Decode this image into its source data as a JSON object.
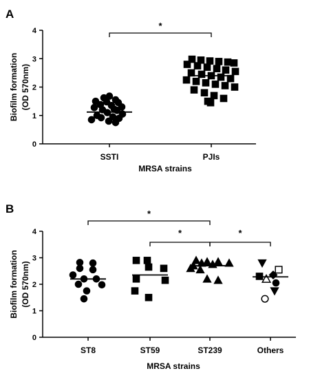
{
  "chart_data": [
    {
      "type": "scatter",
      "panel_label": "A",
      "xlabel": "MRSA strains",
      "ylabel": [
        "Biofilm formation",
        "(OD 570nm)"
      ],
      "ylim": [
        0,
        4
      ],
      "yticks": [
        "0",
        "1",
        "2",
        "3",
        "4"
      ],
      "categories": [
        "SSTI",
        "PJIs"
      ],
      "series": [
        {
          "category": "SSTI",
          "marker": "circle",
          "mean": 1.12,
          "values": [
            1.68,
            1.62,
            1.55,
            1.5,
            1.48,
            1.45,
            1.38,
            1.35,
            1.3,
            1.28,
            1.22,
            1.2,
            1.18,
            1.1,
            1.05,
            1.0,
            0.95,
            0.92,
            0.9,
            0.85,
            0.8,
            0.75
          ]
        },
        {
          "category": "PJIs",
          "marker": "square",
          "mean": 2.4,
          "values": [
            2.98,
            2.95,
            2.92,
            2.9,
            2.88,
            2.85,
            2.8,
            2.75,
            2.7,
            2.65,
            2.6,
            2.55,
            2.5,
            2.45,
            2.4,
            2.35,
            2.3,
            2.25,
            2.2,
            2.15,
            2.1,
            2.05,
            2.0,
            1.9,
            1.8,
            1.7,
            1.6,
            1.5,
            1.45
          ]
        }
      ],
      "significance": [
        {
          "from": "SSTI",
          "to": "PJIs",
          "label": "*"
        }
      ]
    },
    {
      "type": "scatter",
      "panel_label": "B",
      "xlabel": "MRSA strains",
      "ylabel": [
        "Biofilm formation",
        "(OD 570nm)"
      ],
      "ylim": [
        0,
        4
      ],
      "yticks": [
        "0",
        "1",
        "2",
        "3",
        "4"
      ],
      "categories": [
        "ST8",
        "ST59",
        "ST239",
        "Others"
      ],
      "series": [
        {
          "category": "ST8",
          "marker": "circle",
          "mean": 2.2,
          "values": [
            2.82,
            2.8,
            2.6,
            2.55,
            2.35,
            2.2,
            2.2,
            2.0,
            1.98,
            1.75,
            1.45
          ]
        },
        {
          "category": "ST59",
          "marker": "square",
          "mean": 2.35,
          "values": [
            2.9,
            2.9,
            2.65,
            2.6,
            2.2,
            2.15,
            1.75,
            1.5
          ]
        },
        {
          "category": "ST239",
          "marker": "triangle",
          "mean": 2.7,
          "values": [
            2.9,
            2.85,
            2.85,
            2.8,
            2.8,
            2.75,
            2.7,
            2.6,
            2.55,
            2.2,
            2.15
          ]
        },
        {
          "category": "Others",
          "marker": "mixed",
          "mean": 2.28,
          "values": [
            2.8,
            2.55,
            2.35,
            2.3,
            2.2,
            2.05,
            1.75,
            1.45
          ]
        }
      ],
      "significance": [
        {
          "from": "ST8",
          "to": "ST239",
          "label": "*"
        },
        {
          "from": "ST59",
          "to": "ST239",
          "label": "*"
        },
        {
          "from": "ST239",
          "to": "Others",
          "label": "*"
        }
      ]
    }
  ]
}
